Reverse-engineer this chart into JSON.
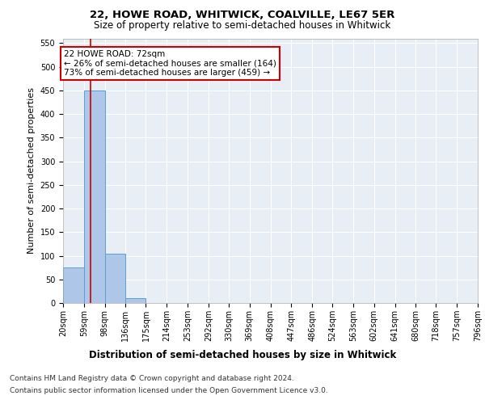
{
  "title1": "22, HOWE ROAD, WHITWICK, COALVILLE, LE67 5ER",
  "title2": "Size of property relative to semi-detached houses in Whitwick",
  "xlabel": "Distribution of semi-detached houses by size in Whitwick",
  "ylabel": "Number of semi-detached properties",
  "bin_edges": [
    20,
    59,
    98,
    136,
    175,
    214,
    253,
    292,
    330,
    369,
    408,
    447,
    486,
    524,
    563,
    602,
    641,
    680,
    718,
    757,
    796
  ],
  "bar_heights": [
    75,
    450,
    105,
    10,
    0,
    0,
    0,
    0,
    0,
    0,
    0,
    0,
    0,
    0,
    0,
    0,
    0,
    0,
    0,
    0
  ],
  "bar_color": "#aec6e8",
  "bar_edge_color": "#5a9fd4",
  "property_size": 72,
  "annotation_title": "22 HOWE ROAD: 72sqm",
  "annotation_line1": "← 26% of semi-detached houses are smaller (164)",
  "annotation_line2": "73% of semi-detached houses are larger (459) →",
  "annotation_box_color": "#ffffff",
  "annotation_box_edge": "#cc0000",
  "vline_color": "#cc0000",
  "ylim": [
    0,
    560
  ],
  "yticks": [
    0,
    50,
    100,
    150,
    200,
    250,
    300,
    350,
    400,
    450,
    500,
    550
  ],
  "footer1": "Contains HM Land Registry data © Crown copyright and database right 2024.",
  "footer2": "Contains public sector information licensed under the Open Government Licence v3.0.",
  "plot_bg_color": "#e8eef5",
  "title1_fontsize": 9.5,
  "title2_fontsize": 8.5,
  "tick_label_fontsize": 7,
  "ylabel_fontsize": 8,
  "xlabel_fontsize": 8.5,
  "annotation_fontsize": 7.5,
  "footer_fontsize": 6.5
}
